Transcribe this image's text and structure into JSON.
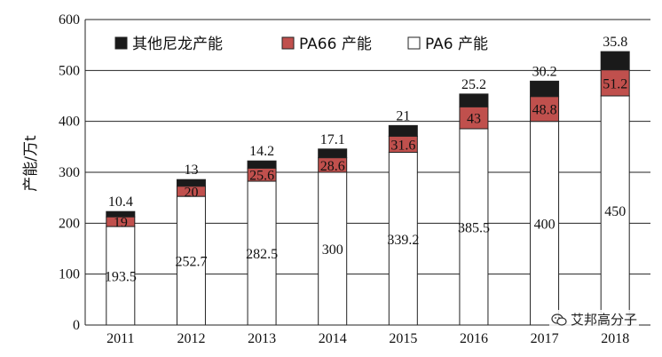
{
  "chart_data": {
    "type": "bar",
    "stacked": true,
    "categories": [
      "2011",
      "2012",
      "2013",
      "2014",
      "2015",
      "2016",
      "2017",
      "2018"
    ],
    "ylabel": "产能/万t",
    "xlabel": "",
    "ylim": [
      0,
      600
    ],
    "yticks": [
      0,
      100,
      200,
      300,
      400,
      500,
      600
    ],
    "grid": "horizontal",
    "legend_position": "top-left",
    "series": [
      {
        "name": "PA6 产能",
        "color": "#ffffff",
        "values": [
          193.5,
          252.7,
          282.5,
          300,
          339.2,
          385.5,
          400,
          450
        ]
      },
      {
        "name": "PA66 产能",
        "color": "#c0504d",
        "values": [
          19,
          20,
          25.6,
          28.6,
          31.6,
          43,
          48.8,
          51.2
        ]
      },
      {
        "name": "其他尼龙产能",
        "color": "#1a1a1a",
        "values": [
          10.4,
          13,
          14.2,
          17.1,
          21,
          25.2,
          30.2,
          35.8
        ]
      }
    ]
  },
  "watermark": {
    "text": "艾邦高分子",
    "icon": "wechat-icon"
  }
}
